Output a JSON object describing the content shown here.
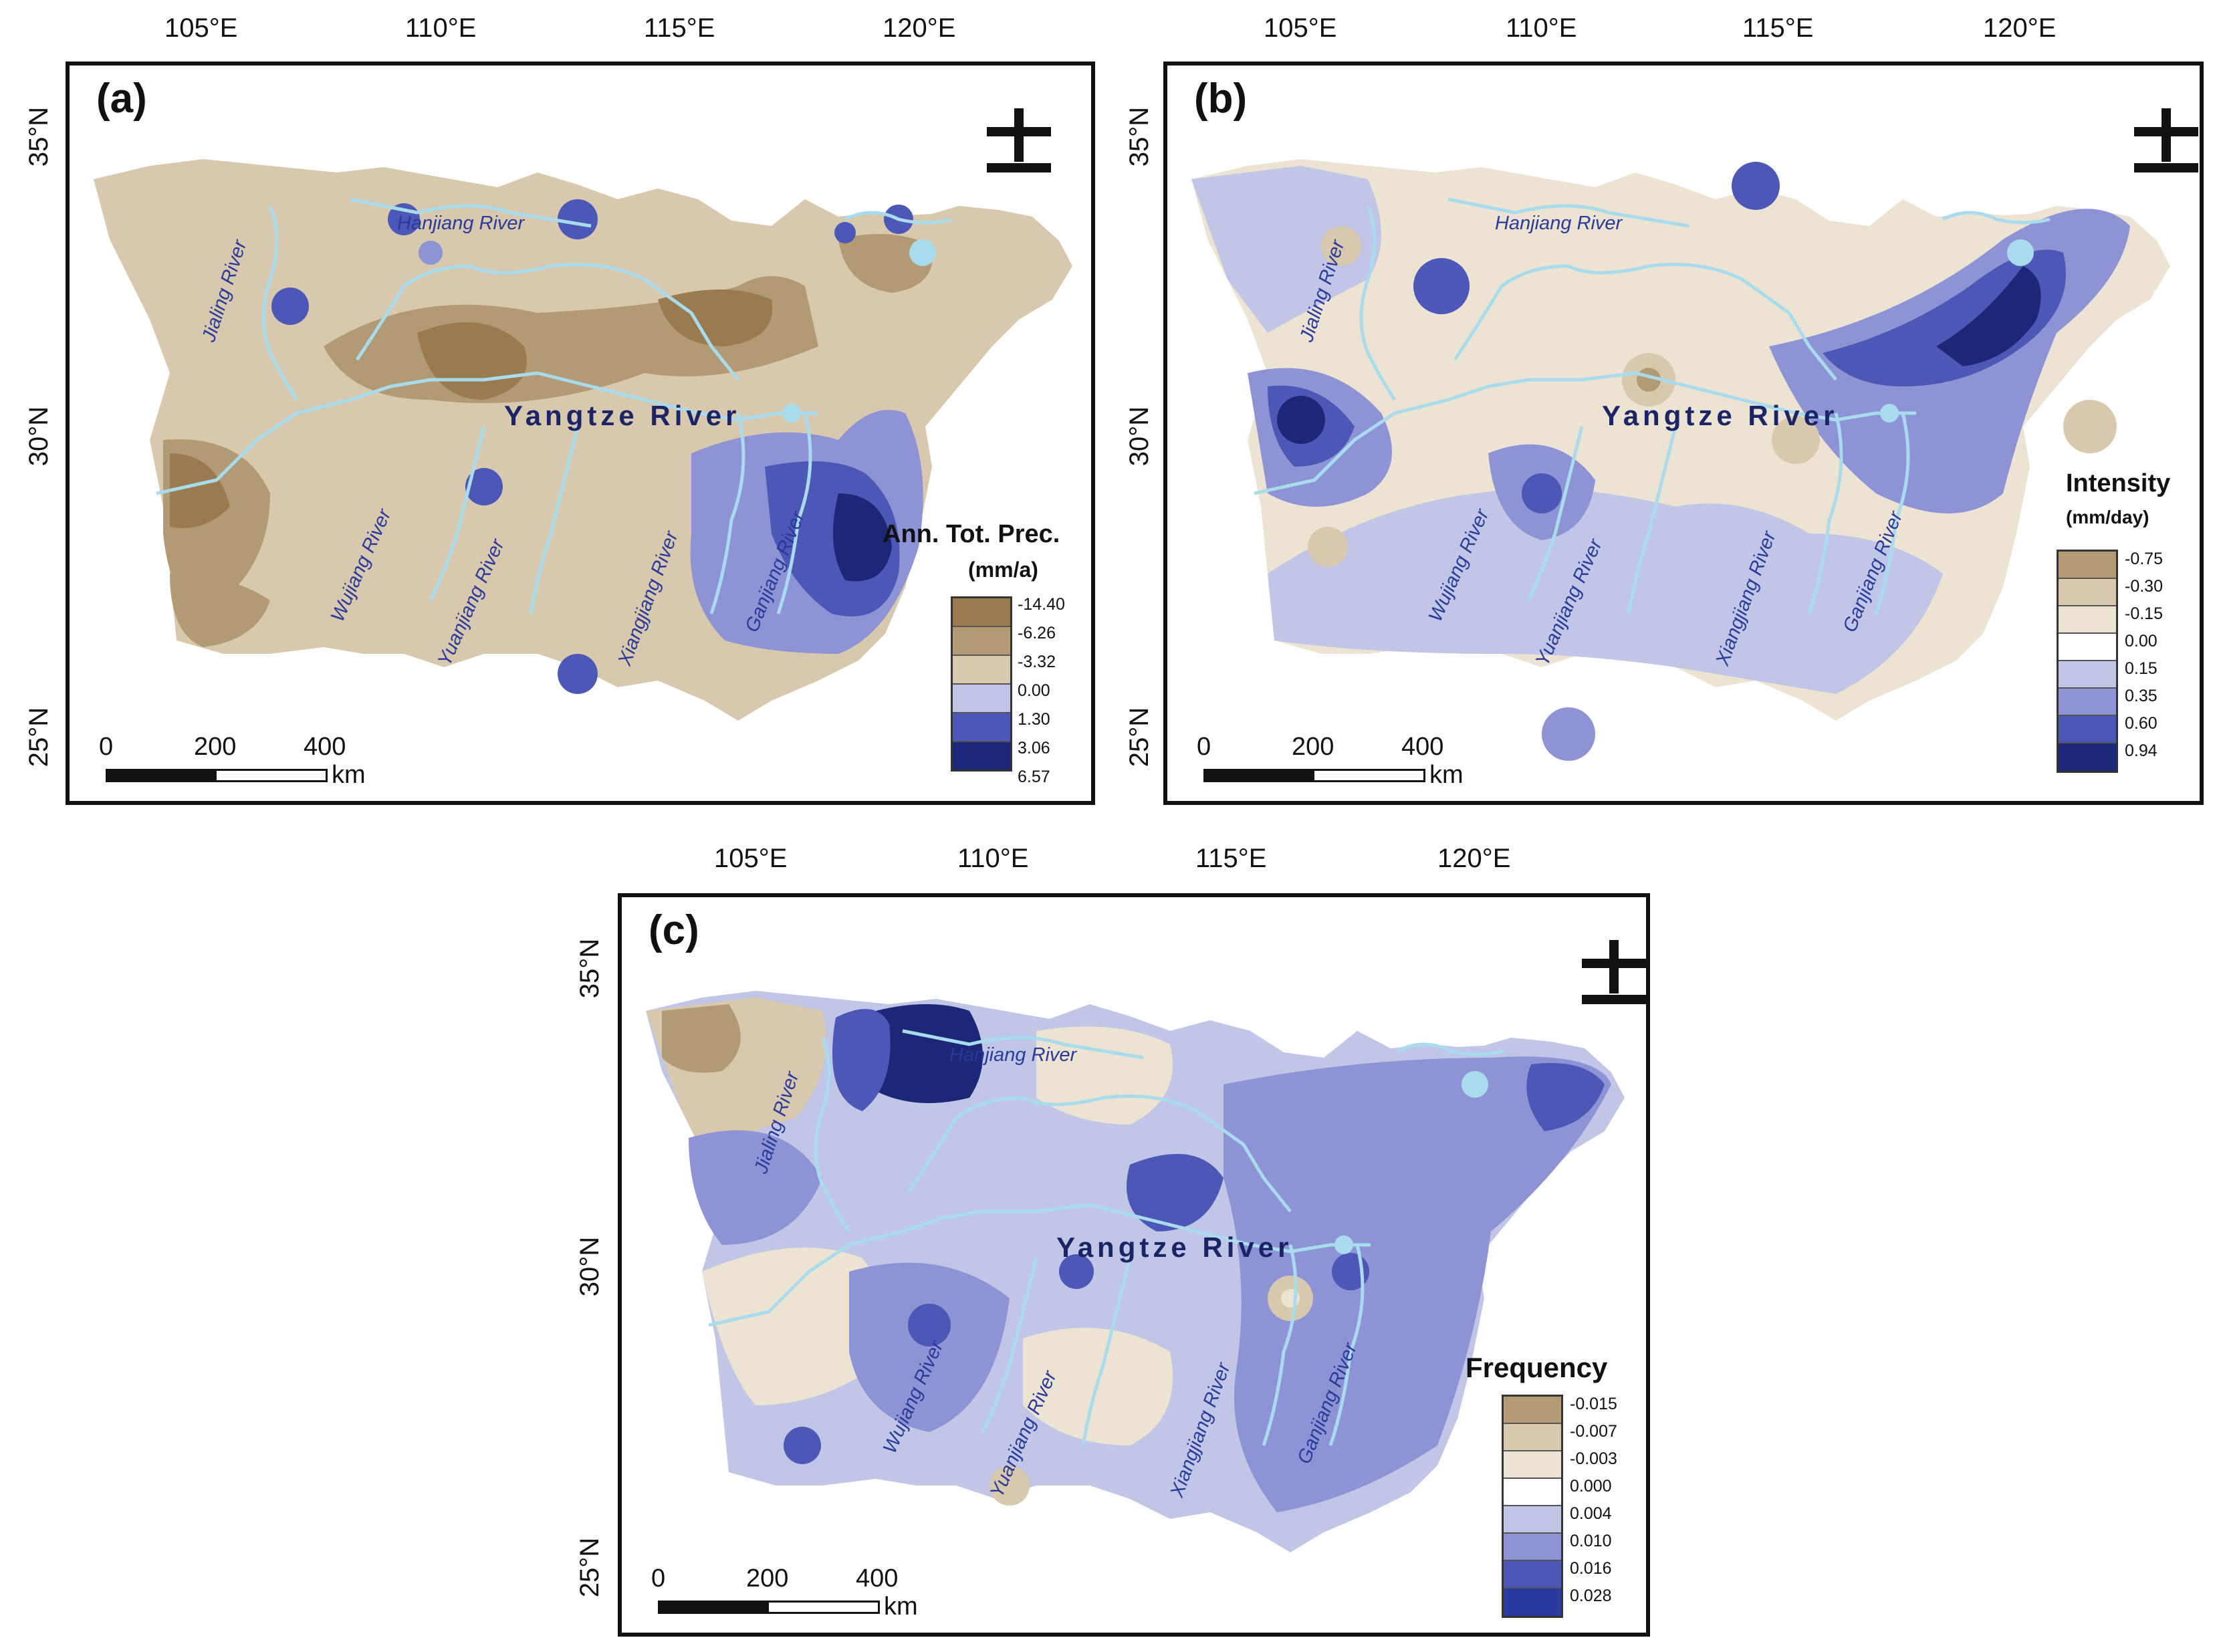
{
  "longitude_labels": [
    "105°E",
    "110°E",
    "115°E",
    "120°E"
  ],
  "latitude_labels": [
    "35°N",
    "30°N",
    "25°N"
  ],
  "river_labels": {
    "hanjiang": "Hanjiang River",
    "jialing": "Jialing River",
    "yangtze": "Yangtze River",
    "wujiang": "Wujiang River",
    "yuanjiang": "Yuanjiang River",
    "xiangjiang": "Xiangjiang River",
    "ganjiang": "Ganjiang River"
  },
  "scale_bar": {
    "ticks": [
      "0",
      "200",
      "400"
    ],
    "unit": "km"
  },
  "colors": {
    "brown_dark": "#9a7b50",
    "brown": "#b29a74",
    "tan": "#d8c8ae",
    "beige": "#ece3d3",
    "lavender": "#c2c6e6",
    "periwinkle": "#8d93d4",
    "blue": "#4c57b6",
    "navy": "#1c2777",
    "river": "#a8dcec"
  },
  "panels": [
    {
      "label": "(a)",
      "legend_title": "Ann. Tot. Prec.",
      "legend_unit": "(mm/a)",
      "legend_values": [
        "-14.40",
        "-6.26",
        "-3.32",
        "0.00",
        "1.30",
        "3.06",
        "6.57"
      ]
    },
    {
      "label": "(b)",
      "legend_title": "Intensity",
      "legend_unit": "(mm/day)",
      "legend_values": [
        "-0.75",
        "-0.30",
        "-0.15",
        "0.00",
        "0.15",
        "0.35",
        "0.60",
        "0.94"
      ]
    },
    {
      "label": "(c)",
      "legend_title": "Frequency",
      "legend_unit": "",
      "legend_values": [
        "-0.015",
        "-0.007",
        "-0.003",
        "0.000",
        "0.004",
        "0.010",
        "0.016",
        "0.028"
      ]
    }
  ]
}
